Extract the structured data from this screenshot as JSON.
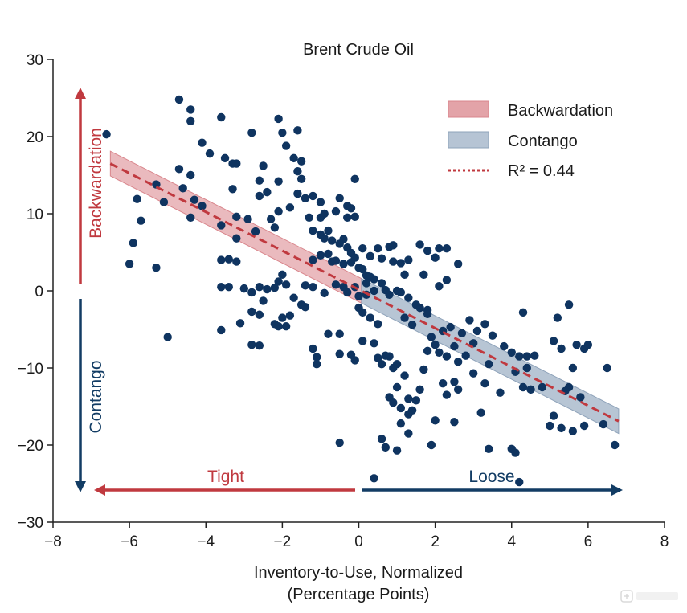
{
  "chart_data": {
    "type": "scatter",
    "title": "Brent Crude Oil",
    "xlabel_line1": "Inventory-to-Use, Normalized",
    "xlabel_line2": "(Percentage Points)",
    "ylabel": "",
    "xlim": [
      -8,
      8
    ],
    "ylim": [
      -30,
      30
    ],
    "xticks": [
      -8,
      -6,
      -4,
      -2,
      0,
      2,
      4,
      6,
      8
    ],
    "yticks": [
      -30,
      -20,
      -10,
      0,
      10,
      20,
      30
    ],
    "grid": false,
    "legend": {
      "placement": "top-right",
      "entries": [
        {
          "label": "Backwardation",
          "kind": "band",
          "color": "#e3a3a8"
        },
        {
          "label": "Contango",
          "kind": "band",
          "color": "#9fb1c6"
        },
        {
          "label": "R² = 0.44",
          "kind": "dotted-line",
          "color": "#c0393f"
        }
      ]
    },
    "fit": {
      "x_start": -6.5,
      "y_start": 16.5,
      "x_end": 6.8,
      "y_end": -16.9,
      "band_halfwidth": 1.6,
      "pos_color": "#e3a3a8",
      "neg_color": "#9fb1c6",
      "line_color": "#c0393f"
    },
    "annotations": {
      "backwardation": "Backwardation",
      "contango": "Contango",
      "tight": "Tight",
      "loose": "Loose",
      "tight_color": "#c0393f",
      "loose_color": "#123c64"
    },
    "point_color": "#0f3460",
    "points": [
      [
        -6.6,
        20.3
      ],
      [
        -4.7,
        24.8
      ],
      [
        -4.4,
        23.5
      ],
      [
        -4.4,
        22.0
      ],
      [
        -3.6,
        22.5
      ],
      [
        -4.1,
        19.2
      ],
      [
        -3.9,
        17.8
      ],
      [
        -3.5,
        17.2
      ],
      [
        -3.3,
        16.5
      ],
      [
        -3.2,
        16.5
      ],
      [
        -2.8,
        20.5
      ],
      [
        -2.5,
        16.2
      ],
      [
        -2.1,
        22.3
      ],
      [
        -2.0,
        20.5
      ],
      [
        -1.6,
        20.8
      ],
      [
        -1.9,
        18.8
      ],
      [
        -1.7,
        17.2
      ],
      [
        -1.5,
        16.8
      ],
      [
        -1.6,
        15.5
      ],
      [
        -1.5,
        14.5
      ],
      [
        -2.1,
        14.2
      ],
      [
        -2.6,
        14.3
      ],
      [
        -3.3,
        13.2
      ],
      [
        -2.6,
        12.3
      ],
      [
        -2.4,
        12.8
      ],
      [
        -5.3,
        13.8
      ],
      [
        -5.1,
        11.5
      ],
      [
        -4.7,
        15.8
      ],
      [
        -4.4,
        15.0
      ],
      [
        -4.6,
        13.3
      ],
      [
        -4.3,
        11.8
      ],
      [
        -4.1,
        11.0
      ],
      [
        -5.8,
        11.9
      ],
      [
        -5.7,
        9.1
      ],
      [
        -5.9,
        6.2
      ],
      [
        -6.0,
        3.5
      ],
      [
        -5.3,
        3.0
      ],
      [
        -4.4,
        9.5
      ],
      [
        -3.6,
        8.5
      ],
      [
        -3.2,
        9.6
      ],
      [
        -3.2,
        6.8
      ],
      [
        -2.9,
        9.3
      ],
      [
        -2.7,
        7.7
      ],
      [
        -2.3,
        9.3
      ],
      [
        -2.2,
        8.2
      ],
      [
        -2.1,
        10.3
      ],
      [
        -1.8,
        10.8
      ],
      [
        -1.6,
        12.6
      ],
      [
        -1.4,
        12.0
      ],
      [
        -1.2,
        12.3
      ],
      [
        -1.0,
        11.5
      ],
      [
        -1.3,
        9.5
      ],
      [
        -1.0,
        9.5
      ],
      [
        -0.9,
        10.0
      ],
      [
        -0.6,
        10.3
      ],
      [
        -0.5,
        12.0
      ],
      [
        -0.3,
        11.0
      ],
      [
        -0.2,
        10.7
      ],
      [
        -0.3,
        9.5
      ],
      [
        -0.1,
        9.6
      ],
      [
        -0.1,
        14.5
      ],
      [
        -1.2,
        7.8
      ],
      [
        -1.0,
        7.3
      ],
      [
        -0.9,
        6.8
      ],
      [
        -0.8,
        7.8
      ],
      [
        -0.7,
        6.5
      ],
      [
        -0.5,
        6.1
      ],
      [
        -0.4,
        6.7
      ],
      [
        -0.3,
        5.6
      ],
      [
        -0.2,
        4.9
      ],
      [
        -0.1,
        4.3
      ],
      [
        0.1,
        5.5
      ],
      [
        0.3,
        4.5
      ],
      [
        0.5,
        5.5
      ],
      [
        0.6,
        4.2
      ],
      [
        0.8,
        5.7
      ],
      [
        0.9,
        5.9
      ],
      [
        0.9,
        3.8
      ],
      [
        1.1,
        3.6
      ],
      [
        1.2,
        2.1
      ],
      [
        1.3,
        4.0
      ],
      [
        1.6,
        6.0
      ],
      [
        1.8,
        5.2
      ],
      [
        2.0,
        4.3
      ],
      [
        2.1,
        5.5
      ],
      [
        2.3,
        5.5
      ],
      [
        2.6,
        3.5
      ],
      [
        1.7,
        2.1
      ],
      [
        -1.2,
        4.0
      ],
      [
        -1.0,
        4.6
      ],
      [
        -0.8,
        4.8
      ],
      [
        -0.7,
        3.8
      ],
      [
        -0.6,
        3.9
      ],
      [
        -0.4,
        3.5
      ],
      [
        -0.2,
        3.7
      ],
      [
        0.0,
        3.0
      ],
      [
        0.1,
        2.8
      ],
      [
        0.2,
        2.0
      ],
      [
        0.3,
        1.8
      ],
      [
        0.4,
        1.5
      ],
      [
        0.2,
        1.0
      ],
      [
        -0.1,
        0.5
      ],
      [
        0.0,
        -0.7
      ],
      [
        0.2,
        -0.5
      ],
      [
        0.4,
        0.0
      ],
      [
        0.6,
        1.0
      ],
      [
        0.7,
        0.1
      ],
      [
        0.8,
        -0.5
      ],
      [
        1.0,
        0.0
      ],
      [
        1.1,
        -0.2
      ],
      [
        1.3,
        -0.9
      ],
      [
        1.5,
        -1.8
      ],
      [
        1.6,
        -2.2
      ],
      [
        1.8,
        -2.5
      ],
      [
        2.1,
        0.6
      ],
      [
        2.3,
        1.4
      ],
      [
        -3.6,
        4.0
      ],
      [
        -3.4,
        4.1
      ],
      [
        -3.2,
        3.8
      ],
      [
        -3.4,
        0.5
      ],
      [
        -3.6,
        0.5
      ],
      [
        -3.0,
        0.3
      ],
      [
        -2.8,
        -0.2
      ],
      [
        -2.5,
        -1.3
      ],
      [
        -2.6,
        0.5
      ],
      [
        -2.4,
        0.2
      ],
      [
        -2.2,
        0.4
      ],
      [
        -2.0,
        2.1
      ],
      [
        -2.1,
        1.2
      ],
      [
        -1.9,
        0.8
      ],
      [
        -1.7,
        -0.9
      ],
      [
        -1.5,
        -1.8
      ],
      [
        -1.4,
        0.7
      ],
      [
        -1.2,
        0.5
      ],
      [
        -0.9,
        -0.3
      ],
      [
        -0.6,
        0.8
      ],
      [
        -0.4,
        0.5
      ],
      [
        -0.3,
        -0.2
      ],
      [
        0.0,
        -2.2
      ],
      [
        0.1,
        -2.8
      ],
      [
        0.3,
        -3.5
      ],
      [
        0.5,
        -4.3
      ],
      [
        -3.6,
        -5.1
      ],
      [
        -3.1,
        -4.2
      ],
      [
        -2.8,
        -2.7
      ],
      [
        -2.6,
        -3.1
      ],
      [
        -2.2,
        -4.3
      ],
      [
        -2.1,
        -4.6
      ],
      [
        -1.9,
        -4.6
      ],
      [
        -2.0,
        -3.5
      ],
      [
        -1.8,
        -3.2
      ],
      [
        -1.4,
        -2.1
      ],
      [
        -2.8,
        -7.0
      ],
      [
        -2.6,
        -7.1
      ],
      [
        -5.0,
        -6.0
      ],
      [
        -1.2,
        -7.5
      ],
      [
        -1.1,
        -8.6
      ],
      [
        -1.1,
        -9.5
      ],
      [
        -0.8,
        -5.6
      ],
      [
        -0.5,
        -5.6
      ],
      [
        -0.5,
        -8.2
      ],
      [
        -0.2,
        -8.3
      ],
      [
        -0.1,
        -9.0
      ],
      [
        0.1,
        -6.5
      ],
      [
        0.4,
        -6.8
      ],
      [
        0.5,
        -8.7
      ],
      [
        0.7,
        -8.4
      ],
      [
        0.6,
        -9.5
      ],
      [
        0.8,
        -8.5
      ],
      [
        0.9,
        -10.0
      ],
      [
        1.0,
        -9.5
      ],
      [
        1.2,
        -11.0
      ],
      [
        1.0,
        -12.5
      ],
      [
        0.8,
        -13.8
      ],
      [
        0.9,
        -14.5
      ],
      [
        1.1,
        -15.2
      ],
      [
        1.3,
        -14.0
      ],
      [
        1.4,
        -15.5
      ],
      [
        1.3,
        -16.0
      ],
      [
        1.1,
        -17.2
      ],
      [
        1.3,
        -18.5
      ],
      [
        1.5,
        -14.2
      ],
      [
        1.6,
        -12.8
      ],
      [
        1.7,
        -10.2
      ],
      [
        1.8,
        -7.8
      ],
      [
        1.9,
        -6.0
      ],
      [
        2.0,
        -7.0
      ],
      [
        2.1,
        -8.0
      ],
      [
        2.3,
        -8.5
      ],
      [
        2.5,
        -7.2
      ],
      [
        2.6,
        -9.2
      ],
      [
        2.8,
        -8.4
      ],
      [
        3.0,
        -6.8
      ],
      [
        3.1,
        -5.2
      ],
      [
        3.3,
        -4.3
      ],
      [
        2.2,
        -5.2
      ],
      [
        2.4,
        -4.7
      ],
      [
        2.7,
        -5.5
      ],
      [
        1.2,
        -3.5
      ],
      [
        1.4,
        -4.4
      ],
      [
        1.8,
        -3.0
      ],
      [
        2.9,
        -3.8
      ],
      [
        3.5,
        -5.8
      ],
      [
        3.8,
        -7.2
      ],
      [
        4.0,
        -8.0
      ],
      [
        4.2,
        -8.5
      ],
      [
        4.4,
        -8.5
      ],
      [
        4.6,
        -8.4
      ],
      [
        4.4,
        -10.0
      ],
      [
        4.1,
        -10.5
      ],
      [
        4.3,
        -12.5
      ],
      [
        4.5,
        -12.8
      ],
      [
        4.8,
        -12.5
      ],
      [
        3.4,
        -9.5
      ],
      [
        3.0,
        -10.7
      ],
      [
        2.2,
        -12.0
      ],
      [
        2.3,
        -13.5
      ],
      [
        2.5,
        -11.8
      ],
      [
        2.6,
        -12.8
      ],
      [
        2.0,
        -16.8
      ],
      [
        2.5,
        -17.0
      ],
      [
        1.9,
        -20.0
      ],
      [
        3.2,
        -15.8
      ],
      [
        3.3,
        -12.0
      ],
      [
        3.7,
        -13.2
      ],
      [
        0.6,
        -19.2
      ],
      [
        0.7,
        -20.3
      ],
      [
        0.4,
        -24.3
      ],
      [
        1.0,
        -20.7
      ],
      [
        -0.5,
        -19.7
      ],
      [
        3.4,
        -20.5
      ],
      [
        4.0,
        -20.5
      ],
      [
        4.1,
        -21.0
      ],
      [
        4.2,
        -24.8
      ],
      [
        4.3,
        -2.8
      ],
      [
        5.2,
        -3.5
      ],
      [
        5.5,
        -1.8
      ],
      [
        5.1,
        -6.5
      ],
      [
        5.3,
        -7.5
      ],
      [
        5.7,
        -7.0
      ],
      [
        5.9,
        -7.5
      ],
      [
        6.0,
        -7.0
      ],
      [
        5.6,
        -10.0
      ],
      [
        5.5,
        -12.5
      ],
      [
        5.4,
        -13.0
      ],
      [
        5.8,
        -13.8
      ],
      [
        5.1,
        -16.2
      ],
      [
        5.0,
        -17.5
      ],
      [
        5.3,
        -17.8
      ],
      [
        5.6,
        -18.2
      ],
      [
        5.9,
        -17.5
      ],
      [
        6.4,
        -17.3
      ],
      [
        6.5,
        -10.0
      ],
      [
        6.7,
        -20.0
      ]
    ]
  }
}
